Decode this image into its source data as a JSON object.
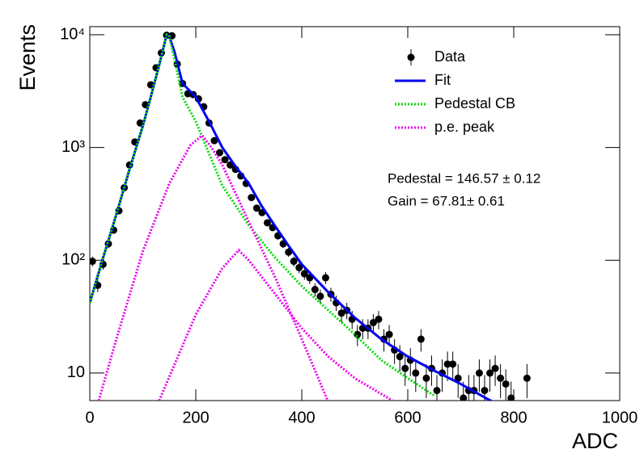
{
  "chart_data": {
    "type": "line",
    "x_label": "ADC",
    "y_label": "Events",
    "log_y": true,
    "xlim": [
      0,
      1000
    ],
    "ylim": [
      5.7,
      11800
    ],
    "xticks": [
      0,
      200,
      400,
      600,
      800,
      1000
    ],
    "yticks": [
      10,
      {
        "value": 100,
        "label": "10²"
      },
      {
        "value": 1000,
        "label": "10³"
      },
      {
        "value": 10000,
        "label": "10⁴"
      }
    ],
    "legend": "top-right",
    "annotations": [
      "Pedestal = 146.57 ± 0.12",
      "Gain = 67.81± 0.61"
    ],
    "series": [
      {
        "name": "Data",
        "style": "points",
        "color": "#000000",
        "x": [
          5,
          15,
          25,
          35,
          45,
          55,
          65,
          75,
          85,
          95,
          105,
          115,
          125,
          135,
          145,
          155,
          165,
          175,
          185,
          195,
          205,
          215,
          225,
          235,
          245,
          255,
          265,
          275,
          285,
          295,
          305,
          315,
          325,
          335,
          345,
          355,
          365,
          375,
          385,
          395,
          405,
          415,
          425,
          435,
          445,
          455,
          465,
          475,
          485,
          495,
          505,
          515,
          525,
          535,
          545,
          555,
          565,
          575,
          585,
          595,
          605,
          615,
          625,
          635,
          645,
          655,
          665,
          675,
          685,
          695,
          705,
          715,
          725,
          735,
          745,
          755,
          765,
          775,
          785,
          795,
          825
        ],
        "values": [
          98,
          60,
          92,
          140,
          185,
          275,
          440,
          700,
          1120,
          1650,
          2400,
          3600,
          5100,
          6900,
          9900,
          9800,
          5500,
          3700,
          3000,
          2950,
          2700,
          2300,
          1650,
          1150,
          900,
          780,
          700,
          640,
          560,
          480,
          360,
          290,
          265,
          215,
          195,
          165,
          140,
          118,
          98,
          86,
          76,
          70,
          55,
          48,
          70,
          50,
          42,
          34,
          36,
          30,
          22,
          25,
          25,
          28,
          30,
          20,
          22,
          16,
          14,
          11,
          13,
          10,
          20,
          9,
          11,
          7,
          10,
          12,
          12,
          9,
          6,
          7,
          7,
          10,
          7,
          10,
          11,
          9,
          8,
          6,
          9
        ],
        "errors": [
          9.9,
          7.7,
          9.6,
          11.8,
          13.6,
          16.6,
          21,
          26.5,
          33.5,
          40.6,
          49,
          60,
          71.4,
          83,
          99.5,
          99,
          74.2,
          60.8,
          54.8,
          54.3,
          52,
          48,
          40.6,
          33.9,
          30,
          27.9,
          26.5,
          25.3,
          23.7,
          21.9,
          19,
          17,
          16.3,
          14.7,
          14,
          12.8,
          11.8,
          10.9,
          9.9,
          9.3,
          8.7,
          8.4,
          7.4,
          6.9,
          8.4,
          7.1,
          6.5,
          5.8,
          6,
          5.5,
          4.7,
          5,
          5,
          5.3,
          5.5,
          4.5,
          4.7,
          4,
          3.7,
          3.3,
          3.6,
          3.2,
          4.5,
          3,
          3.3,
          2.6,
          3.2,
          3.5,
          3.5,
          3,
          2.4,
          2.6,
          2.6,
          3.2,
          2.6,
          3.2,
          3.3,
          3,
          2.8,
          2.4,
          3
        ]
      },
      {
        "name": "Fit",
        "style": "line",
        "color": "#0000ee",
        "x": [
          0,
          25,
          50,
          75,
          100,
          115,
          130,
          145,
          150,
          160,
          175,
          200,
          225,
          250,
          275,
          300,
          325,
          350,
          375,
          400,
          450,
          500,
          550,
          600,
          650,
          700,
          750,
          760
        ],
        "values": [
          42,
          105,
          255,
          640,
          1550,
          2800,
          5200,
          10000,
          9700,
          7000,
          3700,
          2800,
          1700,
          1000,
          680,
          480,
          300,
          200,
          135,
          92,
          52,
          31,
          20,
          14,
          10.5,
          8,
          5.9,
          5.6
        ]
      },
      {
        "name": "Pedestal CB",
        "style": "dotted",
        "color": "#00dd00",
        "x": [
          0,
          25,
          50,
          75,
          100,
          115,
          130,
          145,
          150,
          160,
          175,
          200,
          250,
          300,
          350,
          400,
          450,
          500,
          550,
          600,
          650
        ],
        "values": [
          42,
          105,
          255,
          640,
          1550,
          2800,
          5200,
          10000,
          9700,
          6000,
          2800,
          1700,
          460,
          205,
          105,
          59,
          36,
          22,
          13,
          9,
          6.3
        ]
      },
      {
        "name": "p.e. peak",
        "style": "dotted",
        "color": "#ee00ee",
        "x": [
          17,
          50,
          100,
          150,
          190,
          212,
          230,
          250,
          300,
          350,
          400,
          449,
          null,
          131,
          200,
          250,
          281,
          300,
          350,
          400,
          450,
          500,
          571
        ],
        "values": [
          5.7,
          20,
          120,
          480,
          1050,
          1280,
          1000,
          700,
          220,
          70,
          20,
          5.7,
          null,
          5.7,
          33,
          85,
          123,
          100,
          50,
          25,
          14,
          9,
          5.7
        ]
      }
    ]
  }
}
